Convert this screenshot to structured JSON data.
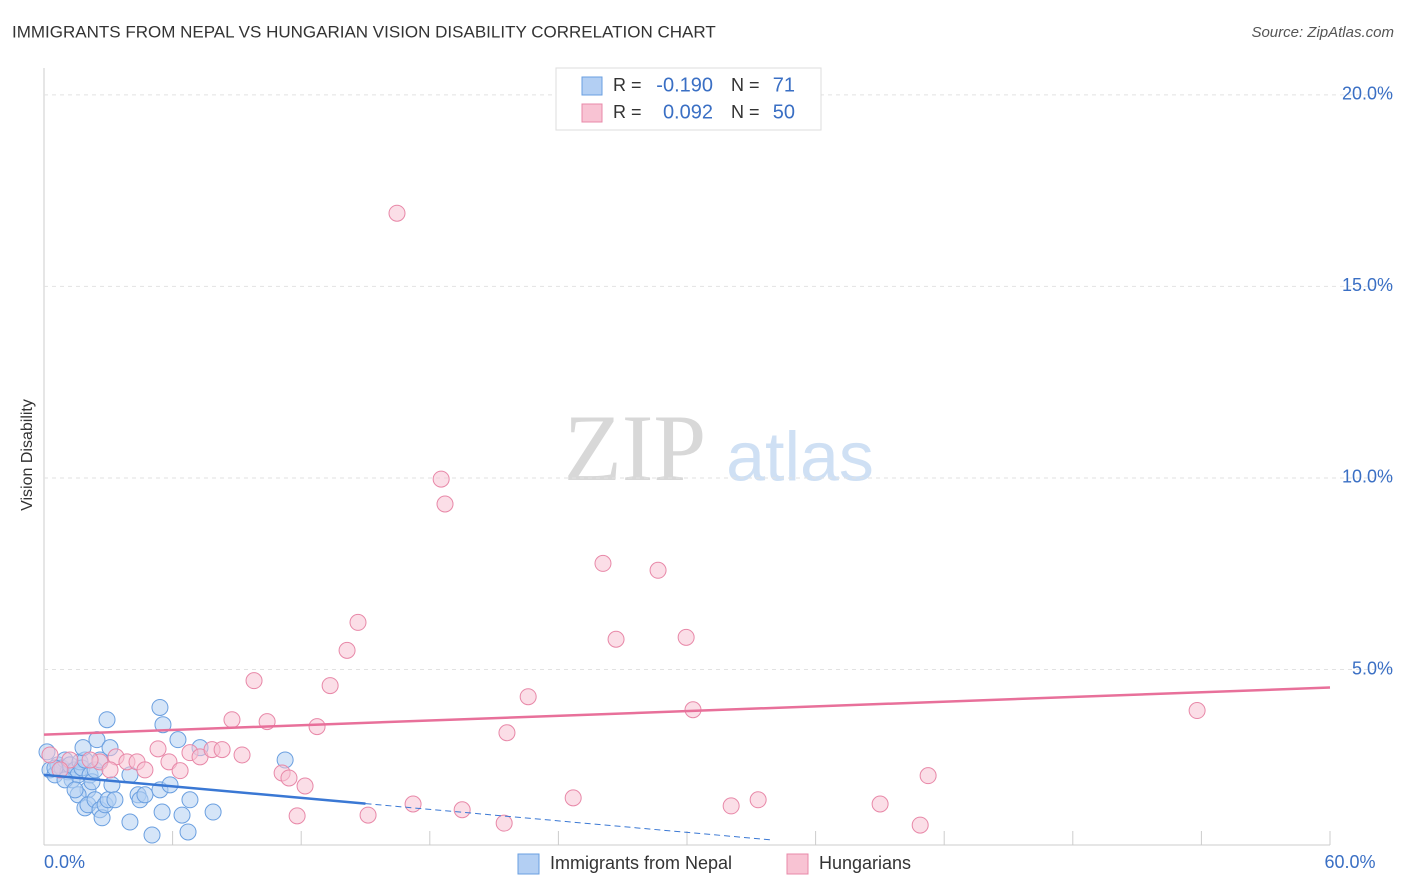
{
  "chart_data": {
    "type": "scatter",
    "title": "IMMIGRANTS FROM NEPAL VS HUNGARIAN VISION DISABILITY CORRELATION CHART",
    "source": "Source: ZipAtlas.com",
    "ylabel": "Vision Disability",
    "watermark": [
      "ZIP",
      "atlas"
    ],
    "xlim": [
      0,
      60
    ],
    "ylim": [
      0.42,
      20.7
    ],
    "xticks": [
      {
        "value": 0,
        "label": "0.0%"
      },
      {
        "value": 6,
        "label": null
      },
      {
        "value": 12,
        "label": null
      },
      {
        "value": 18,
        "label": null
      },
      {
        "value": 24,
        "label": null
      },
      {
        "value": 30,
        "label": null
      },
      {
        "value": 36,
        "label": null
      },
      {
        "value": 42,
        "label": null
      },
      {
        "value": 48,
        "label": null
      },
      {
        "value": 54,
        "label": null
      },
      {
        "value": 60,
        "label": "60.0%"
      }
    ],
    "yticks": [
      {
        "value": 5,
        "label": "5.0%"
      },
      {
        "value": 10,
        "label": "10.0%"
      },
      {
        "value": 15,
        "label": "15.0%"
      },
      {
        "value": 20,
        "label": "20.0%"
      }
    ],
    "grid": true,
    "legend": {
      "r_label": "R =",
      "n_label": "N =",
      "position": "top"
    },
    "series": [
      {
        "name": "Immigrants from Nepal",
        "color": "#6a9fe0",
        "fill": "#b3cff3",
        "line_color": "#3a78d4",
        "r": -0.19,
        "r_label": "-0.190",
        "n": 71,
        "trend": {
          "x": [
            0,
            15,
            34
          ],
          "y": [
            2.25,
            1.5,
            0.55
          ]
        },
        "x": [
          0.14,
          0.28,
          0.51,
          0.65,
          0.84,
          0.98,
          1.12,
          1.21,
          1.31,
          1.45,
          1.59,
          1.68,
          1.77,
          1.91,
          2.05,
          2.15,
          2.24,
          2.38,
          2.47,
          2.61,
          1.59,
          1.91,
          2.05,
          2.38,
          2.61,
          2.71,
          2.85,
          2.99,
          3.17,
          3.31,
          2.94,
          4.01,
          4.39,
          4.48,
          4.71,
          4.01,
          5.04,
          5.41,
          5.55,
          5.41,
          5.51,
          5.88,
          6.25,
          6.44,
          6.72,
          6.81,
          7.28,
          7.89,
          11.25,
          1.82,
          3.08,
          0.98,
          0.51,
          1.45
        ],
        "values": [
          2.85,
          2.38,
          2.25,
          2.51,
          2.43,
          2.64,
          2.33,
          2.51,
          2.12,
          2.38,
          2.25,
          2.59,
          2.43,
          2.64,
          1.86,
          2.25,
          2.07,
          2.38,
          3.17,
          2.64,
          1.73,
          1.39,
          1.47,
          1.6,
          1.34,
          1.13,
          1.47,
          1.6,
          1.99,
          1.6,
          3.69,
          2.25,
          1.73,
          1.6,
          1.73,
          1.02,
          0.68,
          4.01,
          3.56,
          1.86,
          1.28,
          1.99,
          3.17,
          1.2,
          0.76,
          1.6,
          2.96,
          1.28,
          2.64,
          2.96,
          2.96,
          2.12,
          2.43,
          1.86
        ]
      },
      {
        "name": "Hungarians",
        "color": "#e888a8",
        "fill": "#f8c3d3",
        "line_color": "#e8709a",
        "r": 0.092,
        "r_label": "0.092",
        "n": 50,
        "trend": {
          "x": [
            0,
            60
          ],
          "y": [
            3.3,
            4.53
          ]
        },
        "x": [
          16.47,
          18.53,
          18.71,
          26.08,
          28.65,
          26.69,
          29.96,
          14.65,
          14.14,
          13.35,
          9.8,
          22.59,
          30.28,
          53.8,
          8.77,
          10.41,
          12.74,
          21.6,
          5.32,
          6.81,
          7.28,
          7.84,
          8.31,
          9.24,
          3.36,
          3.87,
          4.34,
          5.83,
          6.35,
          2.61,
          1.21,
          0.28,
          4.71,
          11.11,
          11.43,
          12.18,
          41.25,
          24.69,
          33.32,
          32.06,
          17.22,
          19.51,
          39.01,
          11.81,
          15.12,
          21.47,
          40.88,
          2.15,
          0.75,
          3.08
        ],
        "values": [
          16.91,
          9.97,
          9.32,
          7.77,
          7.59,
          5.79,
          5.84,
          6.23,
          5.5,
          4.58,
          4.71,
          4.29,
          3.95,
          3.93,
          3.69,
          3.64,
          3.51,
          3.35,
          2.93,
          2.83,
          2.72,
          2.91,
          2.91,
          2.77,
          2.72,
          2.59,
          2.59,
          2.59,
          2.36,
          2.59,
          2.64,
          2.77,
          2.38,
          2.3,
          2.17,
          1.96,
          2.23,
          1.65,
          1.6,
          1.44,
          1.49,
          1.34,
          1.49,
          1.18,
          1.2,
          0.99,
          0.94,
          2.64,
          2.38,
          2.38
        ]
      }
    ]
  }
}
